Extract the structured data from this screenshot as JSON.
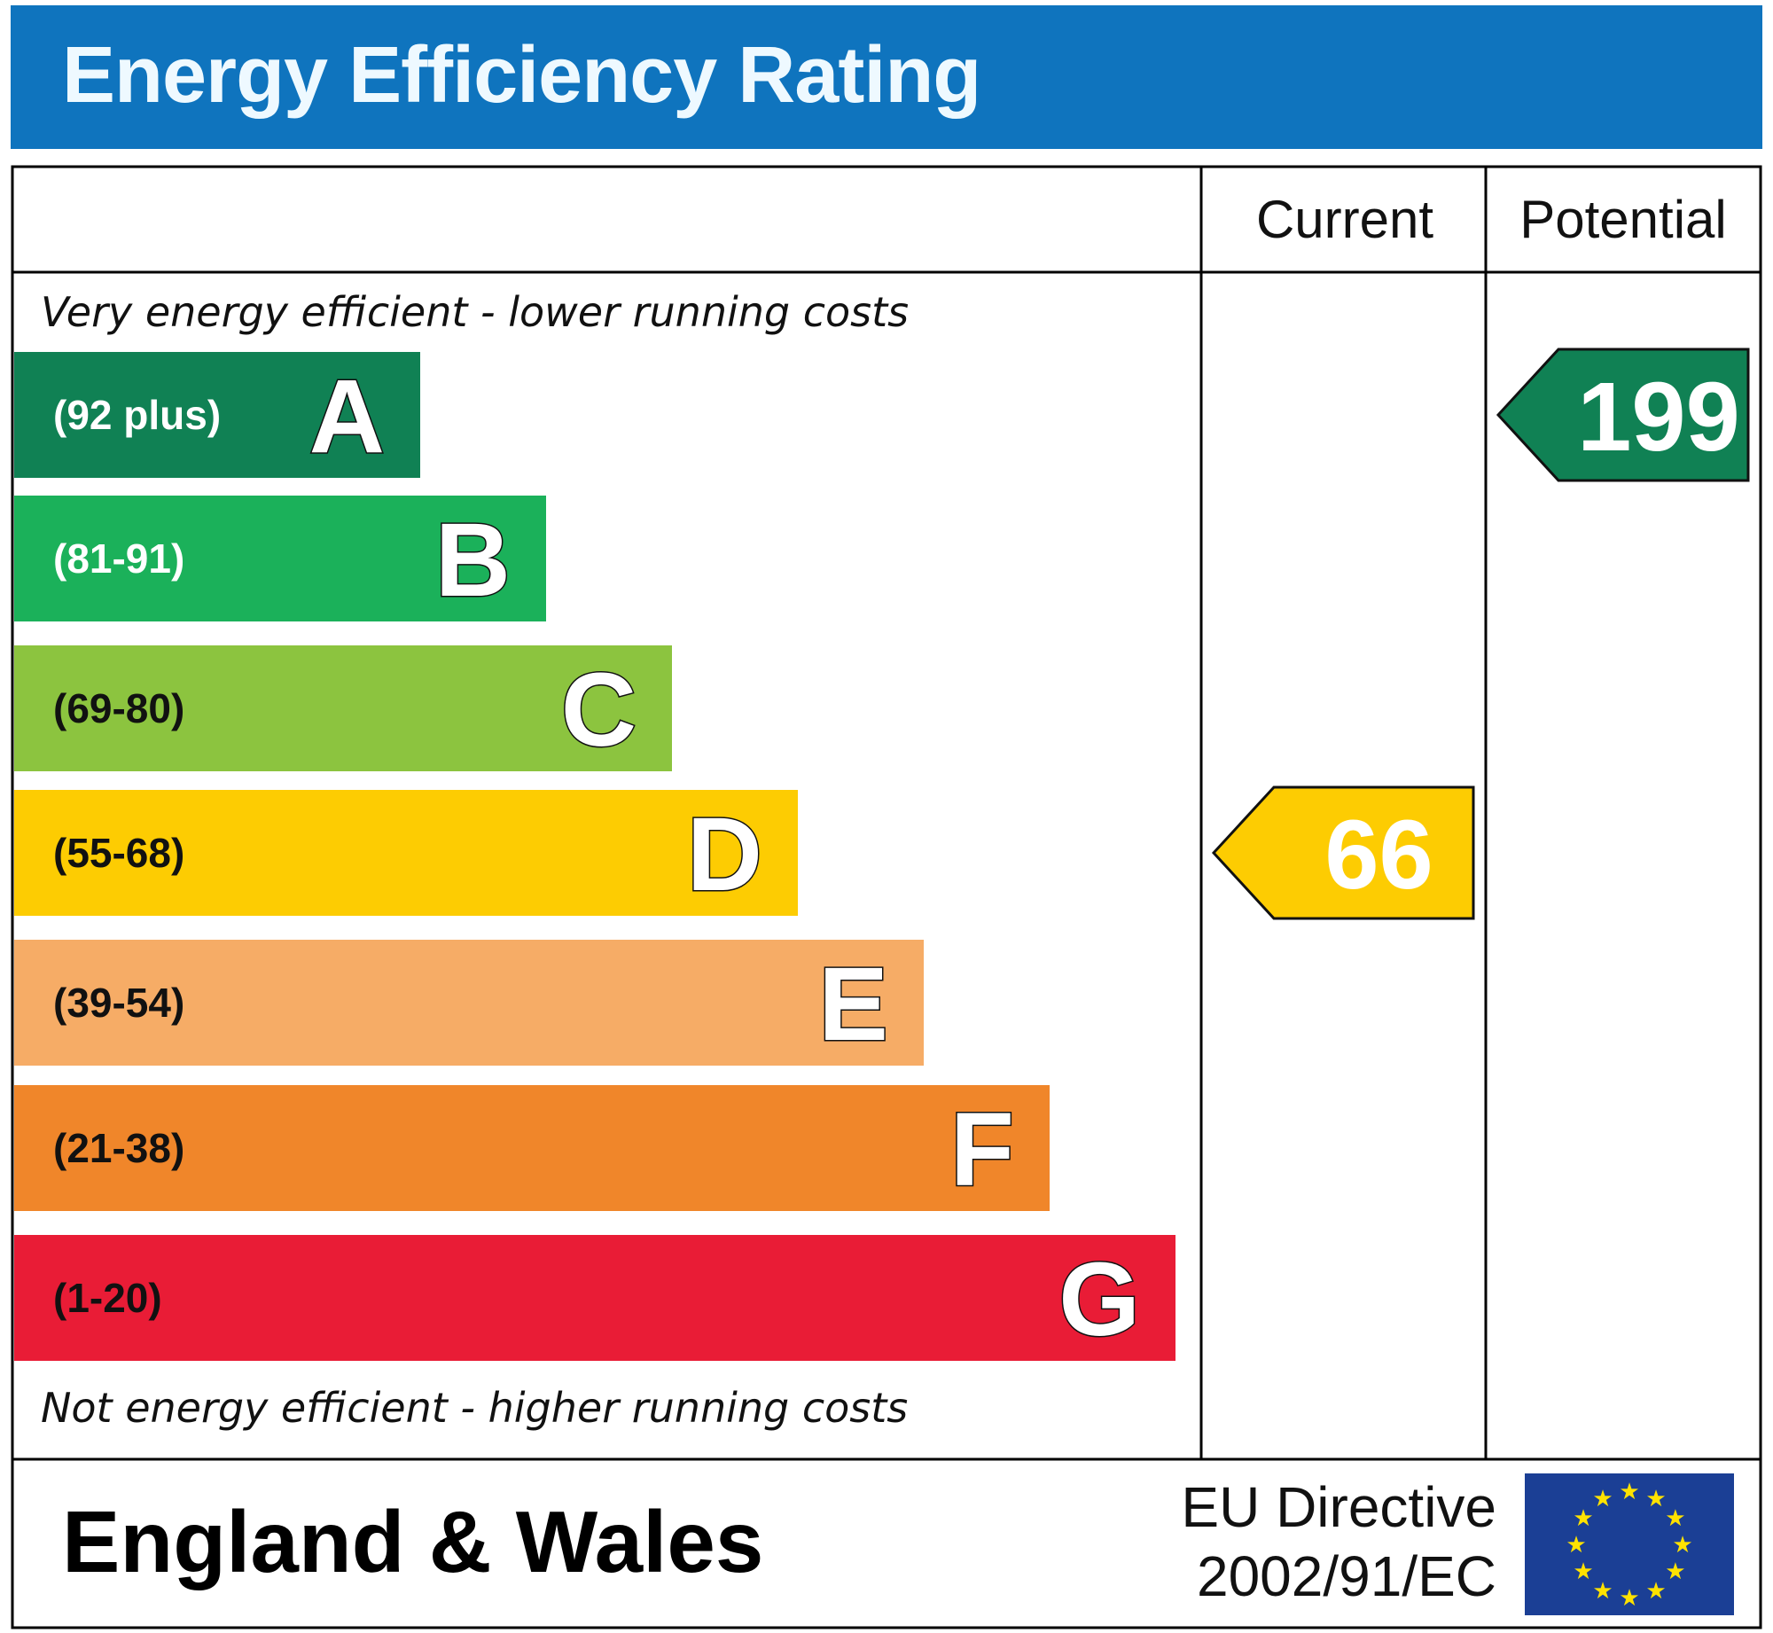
{
  "header": {
    "title": "Energy Efficiency Rating"
  },
  "columns": {
    "current": "Current",
    "potential": "Potential"
  },
  "notes": {
    "top": "Very energy efficient - lower running costs",
    "bottom": "Not energy efficient - higher running costs"
  },
  "footer": {
    "region": "England & Wales",
    "directive_line1": "EU Directive",
    "directive_line2": "2002/91/EC",
    "flag_icon": "eu-flag-icon"
  },
  "chart_data": {
    "type": "bar",
    "title": "Energy Efficiency Rating",
    "bands": [
      {
        "letter": "A",
        "range": "(92 plus)",
        "color": "#108154",
        "label_color": "#ffffff"
      },
      {
        "letter": "B",
        "range": "(81-91)",
        "color": "#1bb15a",
        "label_color": "#ffffff"
      },
      {
        "letter": "C",
        "range": "(69-80)",
        "color": "#8cc43f",
        "label_color": "#111111"
      },
      {
        "letter": "D",
        "range": "(55-68)",
        "color": "#fdcc02",
        "label_color": "#111111"
      },
      {
        "letter": "E",
        "range": "(39-54)",
        "color": "#f6ac66",
        "label_color": "#111111"
      },
      {
        "letter": "F",
        "range": "(21-38)",
        "color": "#f0862a",
        "label_color": "#111111"
      },
      {
        "letter": "G",
        "range": "(1-20)",
        "color": "#e91c36",
        "label_color": "#111111"
      }
    ],
    "current": {
      "value": 66,
      "band": "D",
      "color": "#fdcc02"
    },
    "potential": {
      "value": 199,
      "band": "A",
      "color": "#108154"
    }
  }
}
